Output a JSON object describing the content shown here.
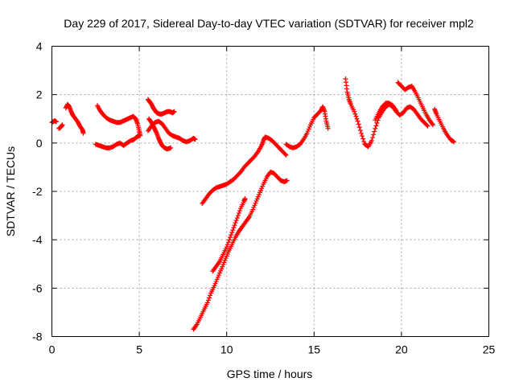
{
  "chart_data": {
    "type": "scatter",
    "title": "Day 229 of 2017, Sidereal Day-to-day VTEC variation (SDTVAR) for receiver mpl2",
    "xlabel": "GPS time / hours",
    "ylabel": "SDTVAR / TECUs",
    "xlim": [
      0,
      25
    ],
    "ylim": [
      -8,
      4
    ],
    "xticks": [
      0,
      5,
      10,
      15,
      20,
      25
    ],
    "yticks": [
      -8,
      -6,
      -4,
      -2,
      0,
      2,
      4
    ],
    "grid": true,
    "marker": "+",
    "color": "#ff0000",
    "series": [
      {
        "segments": [
          [
            [
              0.0,
              0.85
            ],
            [
              0.15,
              0.92
            ],
            [
              0.25,
              0.88
            ]
          ],
          [
            [
              0.4,
              0.6
            ],
            [
              0.5,
              0.65
            ],
            [
              0.6,
              0.75
            ]
          ],
          [
            [
              0.8,
              1.45
            ],
            [
              0.9,
              1.6
            ],
            [
              1.0,
              1.5
            ],
            [
              1.1,
              1.3
            ],
            [
              1.2,
              1.15
            ],
            [
              1.35,
              1.0
            ],
            [
              1.5,
              0.85
            ],
            [
              1.6,
              0.7
            ],
            [
              1.75,
              0.55
            ],
            [
              1.8,
              0.4
            ]
          ],
          [
            [
              2.6,
              1.55
            ],
            [
              2.75,
              1.35
            ],
            [
              2.9,
              1.2
            ],
            [
              3.1,
              1.05
            ],
            [
              3.3,
              0.95
            ],
            [
              3.5,
              0.9
            ],
            [
              3.7,
              0.85
            ],
            [
              3.9,
              0.85
            ],
            [
              4.05,
              0.9
            ],
            [
              4.2,
              0.95
            ],
            [
              4.35,
              1.0
            ],
            [
              4.5,
              1.05
            ],
            [
              4.65,
              1.1
            ],
            [
              4.8,
              1.0
            ],
            [
              4.9,
              0.8
            ],
            [
              5.0,
              0.5
            ],
            [
              5.05,
              0.3
            ]
          ],
          [
            [
              2.5,
              -0.05
            ],
            [
              2.7,
              -0.1
            ],
            [
              2.9,
              -0.15
            ],
            [
              3.1,
              -0.2
            ],
            [
              3.3,
              -0.2
            ],
            [
              3.5,
              -0.15
            ],
            [
              3.7,
              -0.05
            ],
            [
              3.9,
              0.0
            ],
            [
              4.1,
              -0.1
            ],
            [
              4.3,
              0.0
            ],
            [
              4.5,
              0.1
            ],
            [
              4.7,
              0.15
            ],
            [
              4.85,
              0.25
            ],
            [
              5.0,
              0.3
            ]
          ],
          [
            [
              5.5,
              1.8
            ],
            [
              5.6,
              1.7
            ],
            [
              5.7,
              1.6
            ],
            [
              5.8,
              1.45
            ],
            [
              5.9,
              1.35
            ],
            [
              6.0,
              1.25
            ],
            [
              6.15,
              1.2
            ],
            [
              6.3,
              1.2
            ],
            [
              6.45,
              1.25
            ],
            [
              6.6,
              1.3
            ],
            [
              6.75,
              1.3
            ],
            [
              6.9,
              1.25
            ],
            [
              7.0,
              1.3
            ]
          ],
          [
            [
              5.55,
              1.0
            ],
            [
              5.7,
              0.85
            ],
            [
              5.8,
              0.7
            ],
            [
              5.9,
              0.55
            ],
            [
              6.0,
              0.4
            ],
            [
              6.1,
              0.2
            ],
            [
              6.2,
              0.05
            ],
            [
              6.3,
              -0.1
            ],
            [
              6.45,
              -0.2
            ],
            [
              6.6,
              -0.25
            ],
            [
              6.8,
              -0.2
            ]
          ],
          [
            [
              5.5,
              0.5
            ],
            [
              5.7,
              0.7
            ],
            [
              5.9,
              0.85
            ],
            [
              6.1,
              0.9
            ],
            [
              6.3,
              0.8
            ],
            [
              6.5,
              0.6
            ],
            [
              6.7,
              0.4
            ],
            [
              6.9,
              0.3
            ],
            [
              7.1,
              0.25
            ],
            [
              7.3,
              0.2
            ],
            [
              7.5,
              0.1
            ],
            [
              7.7,
              0.05
            ],
            [
              7.9,
              0.1
            ],
            [
              8.1,
              0.2
            ],
            [
              8.2,
              0.15
            ]
          ],
          [
            [
              8.6,
              -2.5
            ],
            [
              8.8,
              -2.3
            ],
            [
              9.0,
              -2.1
            ],
            [
              9.2,
              -1.95
            ],
            [
              9.4,
              -1.85
            ],
            [
              9.6,
              -1.8
            ],
            [
              9.8,
              -1.75
            ],
            [
              10.0,
              -1.7
            ],
            [
              10.2,
              -1.6
            ],
            [
              10.4,
              -1.5
            ],
            [
              10.6,
              -1.35
            ],
            [
              10.8,
              -1.2
            ],
            [
              11.0,
              -1.0
            ],
            [
              11.2,
              -0.85
            ],
            [
              11.4,
              -0.7
            ],
            [
              11.6,
              -0.55
            ],
            [
              11.8,
              -0.35
            ],
            [
              12.0,
              -0.1
            ],
            [
              12.1,
              0.1
            ],
            [
              12.2,
              0.25
            ],
            [
              12.4,
              0.2
            ],
            [
              12.6,
              0.1
            ],
            [
              12.8,
              -0.05
            ],
            [
              13.0,
              -0.2
            ],
            [
              13.2,
              -0.35
            ],
            [
              13.4,
              -0.5
            ]
          ],
          [
            [
              8.1,
              -7.7
            ],
            [
              8.3,
              -7.5
            ],
            [
              8.5,
              -7.2
            ],
            [
              8.7,
              -6.9
            ],
            [
              8.9,
              -6.6
            ],
            [
              9.1,
              -6.2
            ],
            [
              9.3,
              -5.9
            ],
            [
              9.5,
              -5.55
            ],
            [
              9.7,
              -5.2
            ],
            [
              9.9,
              -4.85
            ],
            [
              10.1,
              -4.5
            ],
            [
              10.3,
              -4.2
            ],
            [
              10.5,
              -3.9
            ],
            [
              10.7,
              -3.65
            ],
            [
              10.9,
              -3.45
            ],
            [
              11.1,
              -3.25
            ],
            [
              11.3,
              -3.05
            ],
            [
              11.5,
              -2.75
            ],
            [
              11.7,
              -2.4
            ],
            [
              11.9,
              -2.05
            ],
            [
              12.1,
              -1.7
            ],
            [
              12.3,
              -1.4
            ],
            [
              12.5,
              -1.2
            ],
            [
              12.7,
              -1.25
            ],
            [
              12.9,
              -1.4
            ],
            [
              13.1,
              -1.55
            ],
            [
              13.3,
              -1.6
            ],
            [
              13.45,
              -1.55
            ]
          ],
          [
            [
              9.2,
              -5.3
            ],
            [
              9.4,
              -5.1
            ],
            [
              9.6,
              -4.9
            ],
            [
              9.8,
              -4.6
            ],
            [
              10.0,
              -4.3
            ],
            [
              10.2,
              -3.9
            ],
            [
              10.4,
              -3.5
            ],
            [
              10.6,
              -3.1
            ],
            [
              10.8,
              -2.7
            ],
            [
              11.0,
              -2.4
            ],
            [
              11.05,
              -2.3
            ]
          ],
          [
            [
              13.4,
              -0.05
            ],
            [
              13.6,
              -0.15
            ],
            [
              13.8,
              -0.2
            ],
            [
              14.0,
              -0.15
            ],
            [
              14.2,
              -0.05
            ],
            [
              14.4,
              0.15
            ],
            [
              14.6,
              0.4
            ],
            [
              14.8,
              0.75
            ],
            [
              15.0,
              1.05
            ],
            [
              15.2,
              1.2
            ],
            [
              15.4,
              1.35
            ],
            [
              15.5,
              1.5
            ],
            [
              15.6,
              1.3
            ],
            [
              15.7,
              0.9
            ],
            [
              15.8,
              0.6
            ]
          ],
          [
            [
              16.8,
              2.65
            ],
            [
              16.9,
              2.1
            ],
            [
              17.0,
              1.8
            ],
            [
              17.1,
              1.6
            ],
            [
              17.3,
              1.3
            ],
            [
              17.5,
              0.9
            ],
            [
              17.7,
              0.4
            ],
            [
              17.9,
              -0.05
            ],
            [
              18.1,
              -0.15
            ],
            [
              18.3,
              0.1
            ],
            [
              18.5,
              0.6
            ],
            [
              18.7,
              1.05
            ],
            [
              18.9,
              1.3
            ],
            [
              19.1,
              1.5
            ],
            [
              19.3,
              1.6
            ],
            [
              19.5,
              1.5
            ],
            [
              19.7,
              1.3
            ],
            [
              19.9,
              1.15
            ],
            [
              20.1,
              1.25
            ],
            [
              20.3,
              1.45
            ],
            [
              20.5,
              1.5
            ],
            [
              20.7,
              1.4
            ],
            [
              20.9,
              1.2
            ],
            [
              21.1,
              1.0
            ],
            [
              21.3,
              0.85
            ],
            [
              21.5,
              0.7
            ]
          ],
          [
            [
              18.5,
              0.95
            ],
            [
              18.7,
              1.25
            ],
            [
              18.9,
              1.5
            ],
            [
              19.1,
              1.65
            ],
            [
              19.3,
              1.65
            ],
            [
              19.5,
              1.55
            ],
            [
              19.7,
              1.35
            ]
          ],
          [
            [
              19.8,
              2.5
            ],
            [
              20.0,
              2.35
            ],
            [
              20.2,
              2.2
            ],
            [
              20.4,
              2.3
            ],
            [
              20.6,
              2.35
            ],
            [
              20.8,
              2.1
            ],
            [
              21.0,
              1.8
            ],
            [
              21.2,
              1.5
            ],
            [
              21.4,
              1.2
            ],
            [
              21.6,
              0.95
            ],
            [
              21.8,
              0.75
            ]
          ],
          [
            [
              21.9,
              1.4
            ],
            [
              22.0,
              1.2
            ],
            [
              22.2,
              0.9
            ],
            [
              22.4,
              0.6
            ],
            [
              22.6,
              0.35
            ],
            [
              22.8,
              0.15
            ],
            [
              23.0,
              0.05
            ]
          ]
        ]
      }
    ]
  }
}
